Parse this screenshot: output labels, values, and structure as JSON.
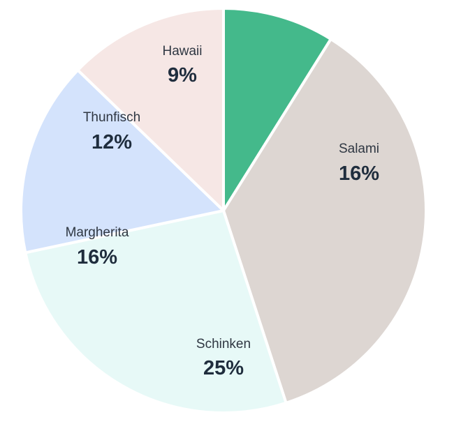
{
  "chart_data": {
    "type": "pie",
    "slices": [
      {
        "label": "Hawaii",
        "value": 9,
        "value_label": "9%",
        "color": "#44b98b"
      },
      {
        "label": "Salami",
        "value": 16,
        "value_label": "16%",
        "color": "#ddd6d2"
      },
      {
        "label": "Schinken",
        "value": 25,
        "value_label": "25%",
        "color": "#e7f9f7"
      },
      {
        "label": "Margherita",
        "value": 16,
        "value_label": "16%",
        "color": "#d4e3fc"
      },
      {
        "label": "Thunfisch",
        "value": 12,
        "value_label": "12%",
        "color": "#f6e7e5"
      }
    ]
  }
}
